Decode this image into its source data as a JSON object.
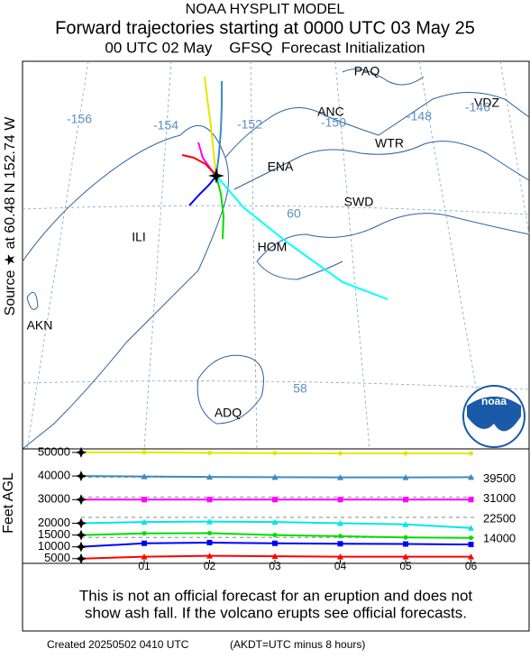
{
  "header": {
    "title": "NOAA HYSPLIT MODEL",
    "subtitle": "Forward trajectories starting at 0000 UTC 03 May 25",
    "subtitle2": "00 UTC 02 May    GFSQ  Forecast Initialization"
  },
  "map": {
    "source_label": "Source ★ at 60.48 N 152.74 W",
    "stations": [
      "PAQ",
      "ANC",
      "VDZ",
      "WTR",
      "ENA",
      "SWD",
      "ILI",
      "HOM",
      "AKN",
      "ADQ"
    ],
    "lon_labels": [
      "-156",
      "-154",
      "-152",
      "-150",
      "-148",
      "-146"
    ],
    "lat_labels": [
      "60",
      "58"
    ],
    "logo": "noaa"
  },
  "chart_data": {
    "type": "line",
    "ylabel": "Feet AGL",
    "categories": [
      null,
      "01",
      "02",
      "03",
      "04",
      "05",
      "06"
    ],
    "ylim": [
      3000,
      51500
    ],
    "yticks": [
      5000,
      10000,
      15000,
      20000,
      30000,
      40000,
      50000
    ],
    "y2lim": [
      3000,
      51500
    ],
    "y2ticks": [
      39500,
      31000,
      22500,
      14000
    ],
    "series": [
      {
        "name": "yellow",
        "color": "#e6e600",
        "values": [
          50000,
          50000,
          49800,
          49700,
          49600,
          49600,
          49600
        ]
      },
      {
        "name": "teal",
        "color": "#3a8cc0",
        "values": [
          40000,
          39800,
          39600,
          39500,
          39400,
          39400,
          39500
        ]
      },
      {
        "name": "magenta",
        "color": "#ff00ff",
        "values": [
          30000,
          30000,
          30000,
          30000,
          30000,
          30000,
          30000
        ]
      },
      {
        "name": "cyan",
        "color": "#00e6e6",
        "values": [
          20000,
          20500,
          20700,
          20500,
          20000,
          19500,
          18000
        ]
      },
      {
        "name": "green",
        "color": "#00dd00",
        "values": [
          15000,
          15700,
          15800,
          15000,
          14500,
          14000,
          13800
        ]
      },
      {
        "name": "blue",
        "color": "#0000ff",
        "values": [
          10000,
          11500,
          11800,
          11500,
          11300,
          11200,
          11000
        ]
      },
      {
        "name": "red",
        "color": "#ff0000",
        "values": [
          5000,
          5800,
          6200,
          6000,
          5800,
          5800,
          5800
        ]
      }
    ]
  },
  "footer": {
    "notice_line1": "This is not an official forecast for an eruption and does not",
    "notice_line2": "show ash fall. If the volcano erupts see official forecasts.",
    "created": "Created 20250502 0410 UTC",
    "timezone": "(AKDT=UTC minus 8 hours)"
  }
}
